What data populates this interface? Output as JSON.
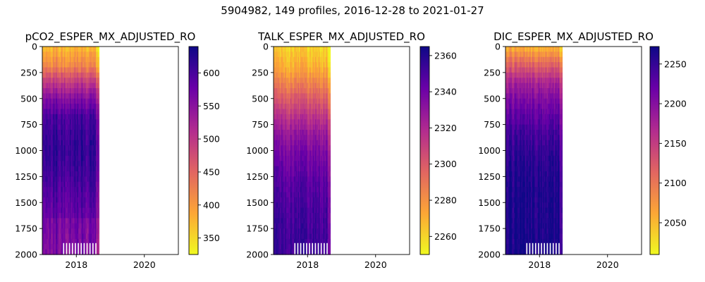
{
  "figure": {
    "suptitle": "5904982, 149 profiles, 2016-12-28 to 2021-01-27"
  },
  "chart_data": [
    {
      "type": "heatmap",
      "title": "pCO2_ESPER_MX_ADJUSTED_RO",
      "x_ticks": [
        "2018",
        "2020"
      ],
      "y_ticks": [
        "0",
        "250",
        "500",
        "750",
        "1000",
        "1250",
        "1500",
        "1750",
        "2000"
      ],
      "ylim": [
        2000,
        0
      ],
      "xlim": [
        "2017-01",
        "2021-01"
      ],
      "data_extent_x": [
        "2017-01",
        "2018-09"
      ],
      "colormap": "plasma_r",
      "colorbar": {
        "min": 325,
        "max": 640,
        "ticks": [
          "350",
          "400",
          "450",
          "500",
          "550",
          "600"
        ]
      },
      "depth_profile": [
        380,
        420,
        500,
        560,
        600,
        610,
        615,
        610,
        600,
        590,
        580,
        575,
        570
      ]
    },
    {
      "type": "heatmap",
      "title": "TALK_ESPER_MX_ADJUSTED_RO",
      "x_ticks": [
        "2018",
        "2020"
      ],
      "y_ticks": [
        "0",
        "250",
        "500",
        "750",
        "1000",
        "1250",
        "1500",
        "1750",
        "2000"
      ],
      "ylim": [
        2000,
        0
      ],
      "xlim": [
        "2017-01",
        "2021-01"
      ],
      "data_extent_x": [
        "2017-01",
        "2018-09"
      ],
      "colormap": "plasma_r",
      "colorbar": {
        "min": 2250,
        "max": 2365,
        "ticks": [
          "2260",
          "2280",
          "2300",
          "2320",
          "2340",
          "2360"
        ]
      },
      "depth_profile": [
        2262,
        2270,
        2285,
        2300,
        2315,
        2328,
        2336,
        2342,
        2346,
        2349,
        2351,
        2352,
        2353
      ]
    },
    {
      "type": "heatmap",
      "title": "DIC_ESPER_MX_ADJUSTED_RO",
      "x_ticks": [
        "2018",
        "2020"
      ],
      "y_ticks": [
        "0",
        "250",
        "500",
        "750",
        "1000",
        "1250",
        "1500",
        "1750",
        "2000"
      ],
      "ylim": [
        2000,
        0
      ],
      "xlim": [
        "2017-01",
        "2021-01"
      ],
      "data_extent_x": [
        "2017-01",
        "2018-09"
      ],
      "colormap": "plasma_r",
      "colorbar": {
        "min": 2010,
        "max": 2272,
        "ticks": [
          "2050",
          "2100",
          "2150",
          "2200",
          "2250"
        ]
      },
      "depth_profile": [
        2060,
        2120,
        2175,
        2205,
        2225,
        2240,
        2250,
        2256,
        2260,
        2262,
        2263,
        2264,
        2265
      ]
    }
  ]
}
